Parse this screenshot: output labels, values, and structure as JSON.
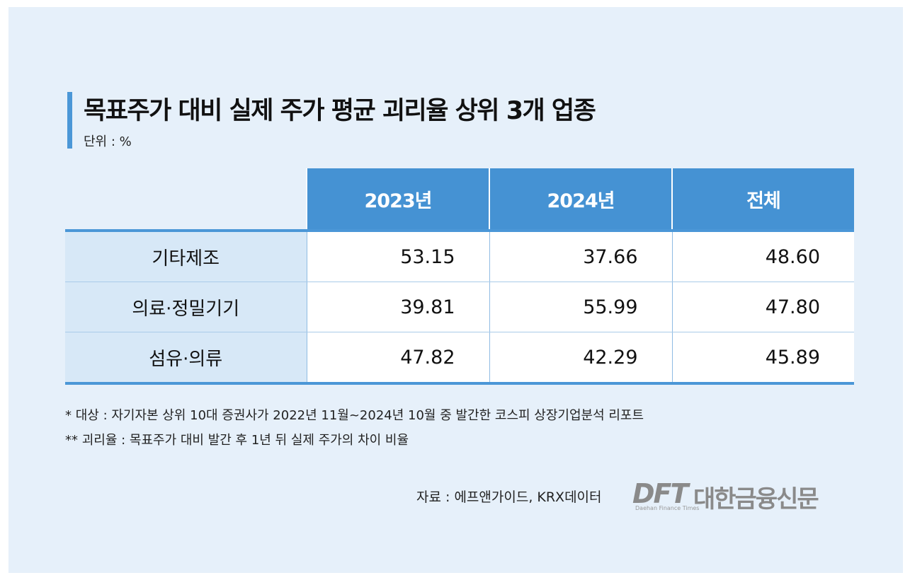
{
  "title": "목표주가 대비 실제 주가 평균 괴리율 상위 3개 업종",
  "unit": "단위 : %",
  "chart_data": {
    "type": "table",
    "columns": [
      "2023년",
      "2024년",
      "전체"
    ],
    "rows": [
      {
        "label": "기타제조",
        "values": [
          "53.15",
          "37.66",
          "48.60"
        ]
      },
      {
        "label": "의료·정밀기기",
        "values": [
          "39.81",
          "55.99",
          "47.80"
        ]
      },
      {
        "label": "섬유·의류",
        "values": [
          "47.82",
          "42.29",
          "45.89"
        ]
      }
    ]
  },
  "notes": [
    "* 대상 : 자기자본 상위 10대 증권사가 2022년 11월~2024년 10월 중 발간한 코스피 상장기업분석 리포트",
    "** 괴리율 : 목표주가 대비 발간 후 1년 뒤 실제 주가의 차이 비율"
  ],
  "source": "자료 : 에프앤가이드, KRX데이터",
  "logo": {
    "mark": "DFT",
    "name": "대한금융신문",
    "sub": "Daehan Finance Times"
  },
  "colors": {
    "header": "#4592d3",
    "label_cell": "#d7e8f7",
    "background": "#e6f0fa",
    "accent": "#4b97d7"
  }
}
